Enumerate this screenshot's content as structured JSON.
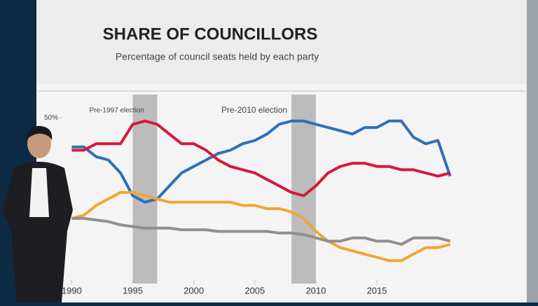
{
  "chart_data": {
    "type": "line",
    "title": "SHARE OF COUNCILLORS",
    "subtitle": "Percentage of council seats held by each party",
    "x": [
      1990,
      1991,
      1992,
      1993,
      1994,
      1995,
      1996,
      1997,
      1998,
      1999,
      2000,
      2001,
      2002,
      2003,
      2004,
      2005,
      2006,
      2007,
      2008,
      2009,
      2010,
      2011,
      2012,
      2013,
      2014,
      2015,
      2016,
      2017,
      2018,
      2019,
      2020,
      2021
    ],
    "series": [
      {
        "color": "#2f6fb8",
        "values": [
          41,
          41,
          38,
          37,
          33,
          26,
          24,
          25,
          29,
          33,
          35,
          37,
          39,
          40,
          42,
          43,
          45,
          48,
          49,
          49,
          48,
          47,
          46,
          45,
          47,
          47,
          49,
          49,
          44,
          42,
          43,
          32
        ]
      },
      {
        "color": "#d4193c",
        "values": [
          40,
          40,
          42,
          42,
          42,
          48,
          49,
          48,
          45,
          42,
          42,
          40,
          37,
          35,
          34,
          33,
          31,
          29,
          27,
          26,
          29,
          33,
          35,
          36,
          36,
          35,
          35,
          34,
          34,
          33,
          32,
          33
        ]
      },
      {
        "color": "#f2a632",
        "values": [
          19,
          20,
          23,
          25,
          27,
          27,
          26,
          25,
          24,
          24,
          24,
          24,
          24,
          24,
          23,
          23,
          22,
          22,
          21,
          19,
          15,
          12,
          10,
          9,
          8,
          7,
          6,
          6,
          8,
          10,
          10,
          11
        ]
      },
      {
        "color": "#8f8f8f",
        "values": [
          19,
          19,
          18.5,
          18,
          17,
          16.5,
          16,
          16,
          16,
          15.5,
          15.5,
          15.5,
          15,
          15,
          15,
          15,
          15,
          14.5,
          14.5,
          14,
          13,
          12,
          12,
          13,
          13,
          12,
          12,
          11,
          13,
          13,
          13,
          12
        ]
      }
    ],
    "shaded": [
      {
        "label": "Pre-1997 election",
        "range": [
          1995,
          1997
        ]
      },
      {
        "label": "Pre-2010 election",
        "range": [
          2008,
          2010
        ]
      }
    ],
    "xlim": [
      1989,
      2022
    ],
    "xticks": [
      1990,
      1995,
      2000,
      2005,
      2010,
      2015
    ],
    "ylim": [
      0,
      55
    ],
    "yticks": [
      {
        "value": 50,
        "label": "50%"
      }
    ],
    "grid": false
  }
}
